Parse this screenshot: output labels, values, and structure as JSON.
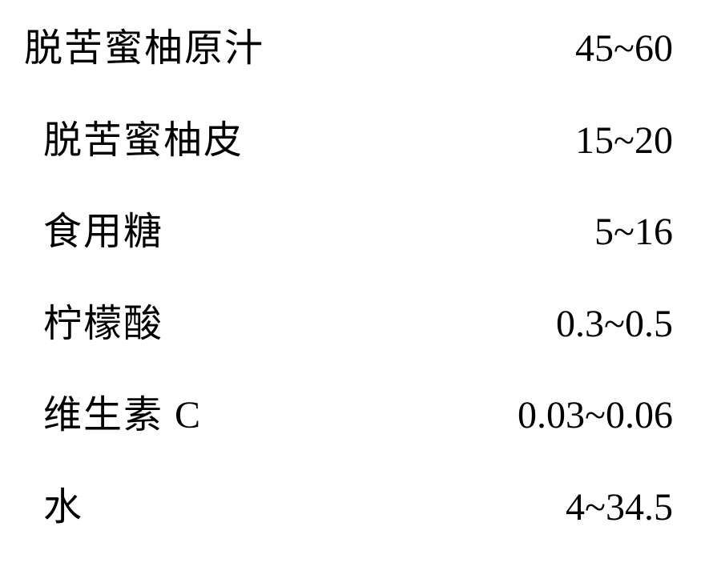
{
  "table": {
    "rows": [
      {
        "label": "脱苦蜜柚原汁",
        "value": "45~60",
        "indent": "indent-1"
      },
      {
        "label": "脱苦蜜柚皮",
        "value": "15~20",
        "indent": "indent-2"
      },
      {
        "label": "食用糖",
        "value": "5~16",
        "indent": "indent-2"
      },
      {
        "label": "柠檬酸",
        "value": "0.3~0.5",
        "indent": "indent-2"
      },
      {
        "label": "维生素 C",
        "value": "0.03~0.06",
        "indent": "indent-2"
      },
      {
        "label": "水",
        "value": "4~34.5",
        "indent": "indent-3"
      }
    ],
    "label_fontsize": 48,
    "value_fontsize": 48,
    "text_color": "#000000",
    "background_color": "#ffffff",
    "label_font": "KaiTi",
    "value_font": "Times New Roman"
  }
}
